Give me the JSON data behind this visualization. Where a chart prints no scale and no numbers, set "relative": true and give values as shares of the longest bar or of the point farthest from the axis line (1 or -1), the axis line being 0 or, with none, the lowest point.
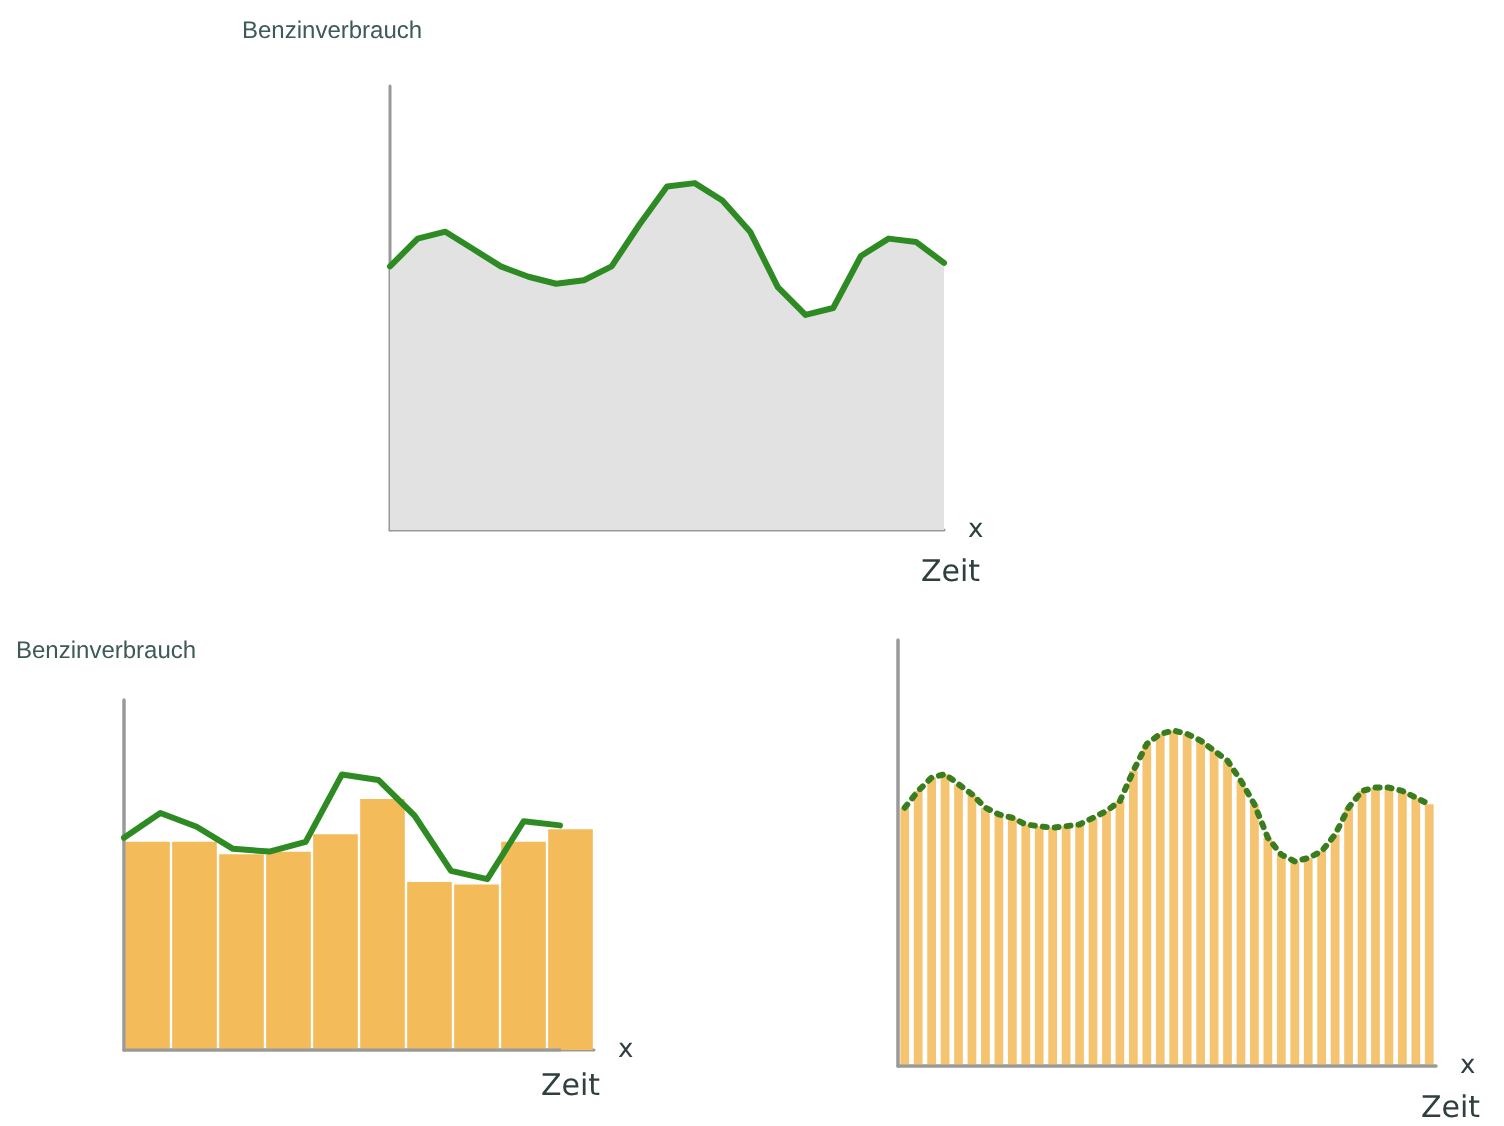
{
  "chart_data": [
    {
      "type": "area",
      "relative": true,
      "ylabel": "Benzinverbrauch",
      "xlabel": "Zeit",
      "annotations": [
        "x"
      ],
      "categories": [
        null,
        null,
        null,
        null,
        null,
        null,
        null,
        null,
        null,
        null,
        null,
        null,
        null,
        null,
        null,
        null,
        null,
        null,
        null,
        null,
        null
      ],
      "series": [
        {
          "color": "#2e8b23",
          "values": [
            0.76,
            0.84,
            0.86,
            0.81,
            0.76,
            0.73,
            0.71,
            0.72,
            0.76,
            0.88,
            0.99,
            1.0,
            0.95,
            0.86,
            0.7,
            0.62,
            0.64,
            0.79,
            0.84,
            0.83,
            0.77
          ]
        }
      ],
      "grid": false
    },
    {
      "type": "bar",
      "relative": true,
      "ylabel": "Benzinverbrauch",
      "xlabel": "Zeit",
      "annotations": [
        "x"
      ],
      "categories": [
        null,
        null,
        null,
        null,
        null,
        null,
        null,
        null,
        null,
        null
      ],
      "series": [
        {
          "color": "#f4bb5a",
          "values": [
            0.83,
            0.83,
            0.78,
            0.79,
            0.86,
            1.0,
            0.67,
            0.66,
            0.83,
            0.88
          ]
        }
      ],
      "grid": false
    },
    {
      "type": "line",
      "relative": true,
      "categories": [
        null,
        null,
        null,
        null,
        null,
        null,
        null,
        null,
        null,
        null,
        null,
        null,
        null
      ],
      "series": [
        {
          "color": "#2e8b23",
          "values": [
            0.77,
            0.86,
            0.81,
            0.73,
            0.72,
            0.755,
            1.0,
            0.98,
            0.85,
            0.65,
            0.62,
            0.83,
            0.815
          ]
        }
      ]
    },
    {
      "type": "bar",
      "relative": true,
      "xlabel": "Zeit",
      "annotations": [
        "x"
      ],
      "categories": [
        null,
        null,
        null,
        null,
        null,
        null,
        null,
        null,
        null,
        null,
        null,
        null,
        null,
        null,
        null,
        null,
        null,
        null,
        null,
        null,
        null,
        null,
        null,
        null,
        null,
        null,
        null,
        null,
        null,
        null,
        null,
        null,
        null,
        null,
        null,
        null,
        null,
        null,
        null,
        null
      ],
      "series": [
        {
          "color": "#f5c470",
          "values": [
            0.77,
            0.82,
            0.86,
            0.87,
            0.84,
            0.81,
            0.77,
            0.75,
            0.74,
            0.72,
            0.715,
            0.71,
            0.715,
            0.72,
            0.74,
            0.76,
            0.79,
            0.88,
            0.96,
            0.99,
            1.0,
            0.99,
            0.97,
            0.94,
            0.91,
            0.85,
            0.78,
            0.68,
            0.63,
            0.61,
            0.62,
            0.64,
            0.69,
            0.77,
            0.82,
            0.83,
            0.83,
            0.82,
            0.8,
            0.78
          ]
        }
      ],
      "grid": false
    },
    {
      "type": "line",
      "relative": true,
      "line_style": "dotted",
      "categories": [
        null,
        null,
        null,
        null,
        null,
        null,
        null,
        null,
        null,
        null,
        null,
        null,
        null,
        null,
        null,
        null,
        null,
        null,
        null,
        null,
        null,
        null,
        null,
        null,
        null,
        null,
        null,
        null,
        null,
        null,
        null,
        null,
        null,
        null,
        null,
        null,
        null,
        null,
        null,
        null
      ],
      "series": [
        {
          "color": "#3a7d1e",
          "values": [
            0.77,
            0.82,
            0.86,
            0.87,
            0.84,
            0.81,
            0.77,
            0.75,
            0.74,
            0.72,
            0.715,
            0.71,
            0.715,
            0.72,
            0.74,
            0.76,
            0.79,
            0.88,
            0.96,
            0.99,
            1.0,
            0.99,
            0.97,
            0.94,
            0.91,
            0.85,
            0.78,
            0.68,
            0.63,
            0.61,
            0.62,
            0.64,
            0.69,
            0.77,
            0.82,
            0.83,
            0.83,
            0.82,
            0.8,
            0.78
          ]
        }
      ]
    }
  ]
}
